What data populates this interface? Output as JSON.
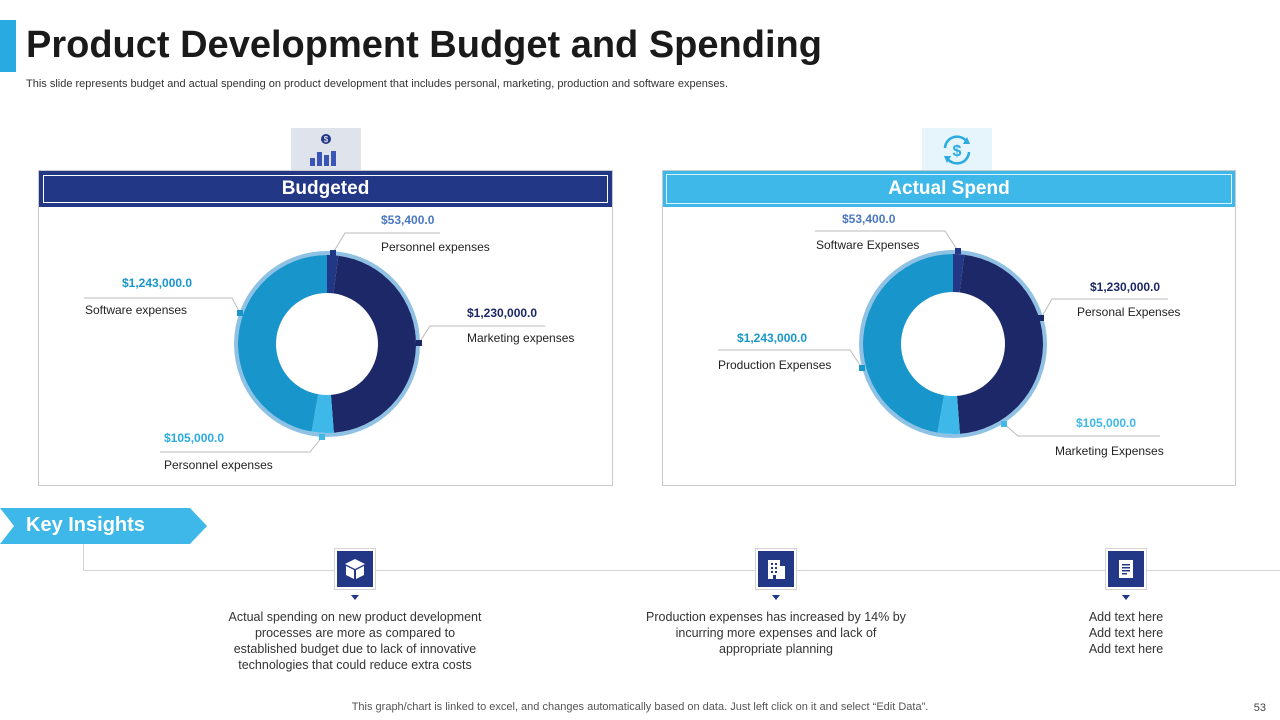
{
  "title": "Product Development Budget and Spending",
  "subtitle": "This slide represents budget and actual spending on product development that includes personal, marketing, production and software expenses.",
  "panels": {
    "budgeted": {
      "header": "Budgeted",
      "icon": "bar-chart-dollar-icon"
    },
    "actual": {
      "header": "Actual Spend",
      "icon": "dollar-refresh-icon"
    }
  },
  "chart_data": [
    {
      "type": "pie",
      "title": "Budgeted",
      "slices": [
        {
          "label": "Personnel expenses",
          "value": 53400,
          "value_label": "$53,400.0",
          "color": "#233787"
        },
        {
          "label": "Marketing expenses",
          "value": 1230000,
          "value_label": "$1,230,000.0",
          "color": "#1c2867"
        },
        {
          "label": "Personnel expenses",
          "value": 105000,
          "value_label": "$105,000.0",
          "color": "#3db8e8"
        },
        {
          "label": "Software expenses",
          "value": 1243000,
          "value_label": "$1,243,000.0",
          "color": "#1896cc"
        }
      ]
    },
    {
      "type": "pie",
      "title": "Actual Spend",
      "slices": [
        {
          "label": "Software Expenses",
          "value": 53400,
          "value_label": "$53,400.0",
          "color": "#233787"
        },
        {
          "label": "Personal Expenses",
          "value": 1230000,
          "value_label": "$1,230,000.0",
          "color": "#1c2867"
        },
        {
          "label": "Marketing Expenses",
          "value": 105000,
          "value_label": "$105,000.0",
          "color": "#3db8e8"
        },
        {
          "label": "Production Expenses",
          "value": 1243000,
          "value_label": "$1,243,000.0",
          "color": "#1896cc"
        }
      ]
    }
  ],
  "key_insights": {
    "title": "Key Insights",
    "items": [
      {
        "icon": "box-icon",
        "lines": [
          "Actual spending on new product development",
          "processes are more as compared to",
          "established budget due to lack of innovative",
          "technologies that could reduce extra costs"
        ]
      },
      {
        "icon": "building-icon",
        "lines": [
          "Production expenses has increased by 14% by",
          "incurring more expenses and lack of",
          "appropriate planning"
        ]
      },
      {
        "icon": "document-icon",
        "lines": [
          "Add text here",
          "Add text here",
          "Add text here"
        ]
      }
    ]
  },
  "footer": "This graph/chart is linked to excel,  and changes automatically based on data. Just left click on it and select “Edit Data”.",
  "page_number": "53"
}
